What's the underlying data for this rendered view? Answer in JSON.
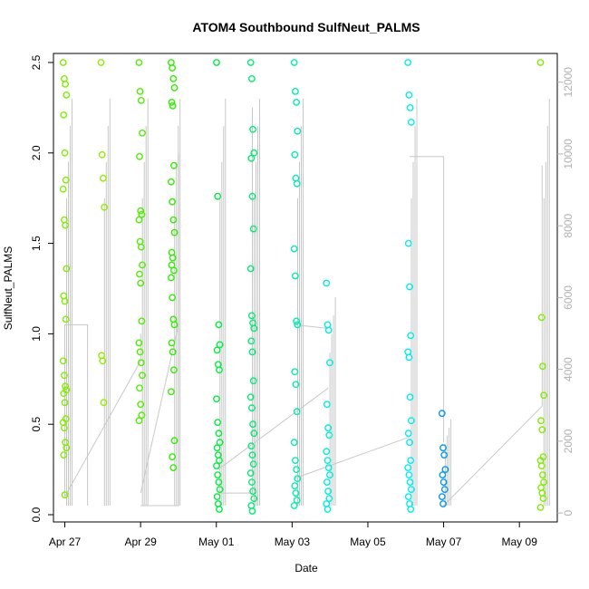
{
  "chart_data": {
    "type": "scatter",
    "title": "ATOM4 Southbound SulfNeut_PALMS",
    "xlabel": "Date",
    "ylabel": "SulfNeut_PALMS",
    "x_ticks": [
      "Apr 27",
      "Apr 29",
      "May 01",
      "May 03",
      "May 05",
      "May 07",
      "May 09"
    ],
    "x_tick_days": [
      0,
      2,
      4,
      6,
      8,
      10,
      12
    ],
    "y_ticks": [
      "0.0",
      "0.5",
      "1.0",
      "1.5",
      "2.0",
      "2.5"
    ],
    "y_tick_values": [
      0,
      0.5,
      1.0,
      1.5,
      2.0,
      2.5
    ],
    "y2_ticks": [
      "0",
      "2000",
      "4000",
      "6000",
      "8000",
      "10000",
      "12000"
    ],
    "y2_tick_values": [
      0,
      2000,
      4000,
      6000,
      8000,
      10000,
      12000
    ],
    "xlim_days": [
      -0.3,
      13.0
    ],
    "ylim": [
      -0.04,
      2.55
    ],
    "y2lim": [
      -250,
      12800
    ],
    "grid": false,
    "colors": {
      "flight_points": [
        "#80ee00",
        "#90ee00",
        "#50ee00",
        "#30ee00",
        "#00ee40",
        "#00ee70",
        "#00eeb0",
        "#00eedd",
        "#00eeee",
        "#0099ee"
      ],
      "altitude_line": "#c8c8c8",
      "axis": "#000000",
      "right_axis": "#b0b0b0"
    },
    "series": [
      {
        "flight_day": 0.0,
        "points": [
          [
            0,
            2.5
          ],
          [
            0,
            2.41
          ],
          [
            0,
            2.38
          ],
          [
            0,
            2.32
          ],
          [
            0,
            2.21
          ],
          [
            0,
            2.0
          ],
          [
            0,
            1.85
          ],
          [
            0,
            1.8
          ],
          [
            0,
            1.63
          ],
          [
            0,
            1.6
          ],
          [
            0,
            1.36
          ],
          [
            0,
            1.21
          ],
          [
            0,
            1.18
          ],
          [
            0,
            1.08
          ],
          [
            0,
            0.85
          ],
          [
            0,
            0.77
          ],
          [
            0,
            0.71
          ],
          [
            0,
            0.69
          ],
          [
            0,
            0.67
          ],
          [
            0,
            0.62
          ],
          [
            0,
            0.53
          ],
          [
            0,
            0.51
          ],
          [
            0,
            0.48
          ],
          [
            0,
            0.4
          ],
          [
            0,
            0.37
          ],
          [
            0,
            0.33
          ],
          [
            0,
            0.11
          ]
        ]
      },
      {
        "flight_day": 1.0,
        "points": [
          [
            1,
            2.5
          ],
          [
            1,
            1.99
          ],
          [
            1,
            1.86
          ],
          [
            1,
            1.7
          ],
          [
            1,
            0.88
          ],
          [
            1,
            0.85
          ],
          [
            1,
            0.62
          ]
        ]
      },
      {
        "flight_day": 2.0,
        "points": [
          [
            2,
            2.5
          ],
          [
            2,
            2.34
          ],
          [
            2,
            2.29
          ],
          [
            2,
            2.11
          ],
          [
            2,
            1.98
          ],
          [
            2,
            1.68
          ],
          [
            2,
            1.66
          ],
          [
            2,
            1.63
          ],
          [
            2,
            1.51
          ],
          [
            2,
            1.48
          ],
          [
            2,
            1.38
          ],
          [
            2,
            1.33
          ],
          [
            2,
            1.28
          ],
          [
            2,
            1.07
          ],
          [
            2,
            0.95
          ],
          [
            2,
            0.9
          ],
          [
            2,
            0.84
          ],
          [
            2,
            0.77
          ],
          [
            2,
            0.7
          ],
          [
            2,
            0.61
          ],
          [
            2,
            0.55
          ],
          [
            2,
            0.52
          ]
        ]
      },
      {
        "flight_day": 2.85,
        "points": [
          [
            2.85,
            2.5
          ],
          [
            2.85,
            2.47
          ],
          [
            2.85,
            2.41
          ],
          [
            2.85,
            2.36
          ],
          [
            2.85,
            2.28
          ],
          [
            2.85,
            2.26
          ],
          [
            2.85,
            1.93
          ],
          [
            2.85,
            1.84
          ],
          [
            2.85,
            1.73
          ],
          [
            2.85,
            1.63
          ],
          [
            2.85,
            1.56
          ],
          [
            2.85,
            1.45
          ],
          [
            2.85,
            1.42
          ],
          [
            2.85,
            1.35
          ],
          [
            2.85,
            1.31
          ],
          [
            2.85,
            1.2
          ],
          [
            2.85,
            1.08
          ],
          [
            2.85,
            1.05
          ],
          [
            2.85,
            0.95
          ],
          [
            2.85,
            0.9
          ],
          [
            2.85,
            0.8
          ],
          [
            2.85,
            0.68
          ],
          [
            2.85,
            0.32
          ],
          [
            2.85,
            0.26
          ],
          [
            2.85,
            0.41
          ],
          [
            2.85,
            1.38
          ]
        ]
      },
      {
        "flight_day": 4.05,
        "points": [
          [
            4.05,
            2.5
          ],
          [
            4.05,
            1.76
          ],
          [
            4.05,
            1.05
          ],
          [
            4.05,
            0.94
          ],
          [
            4.05,
            0.91
          ],
          [
            4.05,
            0.83
          ],
          [
            4.05,
            0.8
          ],
          [
            4.05,
            0.64
          ],
          [
            4.05,
            0.51
          ],
          [
            4.05,
            0.45
          ],
          [
            4.05,
            0.4
          ],
          [
            4.05,
            0.37
          ],
          [
            4.05,
            0.33
          ],
          [
            4.05,
            0.3
          ],
          [
            4.05,
            0.27
          ],
          [
            4.05,
            0.22
          ],
          [
            4.05,
            0.18
          ],
          [
            4.05,
            0.14
          ],
          [
            4.05,
            0.1
          ],
          [
            4.05,
            0.06
          ],
          [
            4.05,
            0.03
          ]
        ]
      },
      {
        "flight_day": 4.95,
        "points": [
          [
            4.95,
            2.5
          ],
          [
            4.95,
            2.41
          ],
          [
            4.95,
            2.13
          ],
          [
            4.95,
            2.0
          ],
          [
            4.95,
            1.97
          ],
          [
            4.95,
            1.76
          ],
          [
            4.95,
            1.58
          ],
          [
            4.95,
            1.36
          ],
          [
            4.95,
            1.1
          ],
          [
            4.95,
            1.06
          ],
          [
            4.95,
            1.03
          ],
          [
            4.95,
            0.96
          ],
          [
            4.95,
            0.9
          ],
          [
            4.95,
            0.74
          ],
          [
            4.95,
            0.65
          ],
          [
            4.95,
            0.59
          ],
          [
            4.95,
            0.5
          ],
          [
            4.95,
            0.45
          ],
          [
            4.95,
            0.38
          ],
          [
            4.95,
            0.33
          ],
          [
            4.95,
            0.28
          ],
          [
            4.95,
            0.23
          ],
          [
            4.95,
            0.18
          ],
          [
            4.95,
            0.13
          ],
          [
            4.95,
            0.09
          ],
          [
            4.95,
            0.05
          ],
          [
            4.95,
            0.02
          ]
        ]
      },
      {
        "flight_day": 6.1,
        "points": [
          [
            6.1,
            2.5
          ],
          [
            6.1,
            2.34
          ],
          [
            6.1,
            2.28
          ],
          [
            6.1,
            2.12
          ],
          [
            6.1,
            1.99
          ],
          [
            6.1,
            1.86
          ],
          [
            6.1,
            1.83
          ],
          [
            6.1,
            1.47
          ],
          [
            6.1,
            1.32
          ],
          [
            6.1,
            1.07
          ],
          [
            6.1,
            1.05
          ],
          [
            6.1,
            0.79
          ],
          [
            6.1,
            0.72
          ],
          [
            6.1,
            0.57
          ],
          [
            6.1,
            0.4
          ],
          [
            6.1,
            0.3
          ],
          [
            6.1,
            0.25
          ],
          [
            6.1,
            0.2
          ],
          [
            6.1,
            0.16
          ],
          [
            6.1,
            0.12
          ],
          [
            6.1,
            0.08
          ],
          [
            6.1,
            0.05
          ]
        ]
      },
      {
        "flight_day": 6.95,
        "points": [
          [
            6.95,
            1.28
          ],
          [
            6.95,
            1.05
          ],
          [
            6.95,
            1.02
          ],
          [
            6.95,
            0.84
          ],
          [
            6.95,
            0.61
          ],
          [
            6.95,
            0.48
          ],
          [
            6.95,
            0.44
          ],
          [
            6.95,
            0.35
          ],
          [
            6.95,
            0.3
          ],
          [
            6.95,
            0.26
          ],
          [
            6.95,
            0.22
          ],
          [
            6.95,
            0.18
          ],
          [
            6.95,
            0.13
          ],
          [
            6.95,
            0.09
          ],
          [
            6.95,
            0.06
          ],
          [
            6.95,
            0.03
          ]
        ]
      },
      {
        "flight_day": 9.1,
        "points": [
          [
            9.1,
            2.5
          ],
          [
            9.1,
            2.32
          ],
          [
            9.1,
            2.25
          ],
          [
            9.1,
            2.17
          ],
          [
            9.1,
            1.5
          ],
          [
            9.1,
            1.26
          ],
          [
            9.1,
            0.99
          ],
          [
            9.1,
            0.9
          ],
          [
            9.1,
            0.87
          ],
          [
            9.1,
            0.65
          ],
          [
            9.1,
            0.52
          ],
          [
            9.1,
            0.45
          ],
          [
            9.1,
            0.4
          ],
          [
            9.1,
            0.3
          ],
          [
            9.1,
            0.26
          ],
          [
            9.1,
            0.22
          ],
          [
            9.1,
            0.18
          ],
          [
            9.1,
            0.14
          ],
          [
            9.1,
            0.1
          ],
          [
            9.1,
            0.06
          ],
          [
            9.1,
            0.03
          ]
        ]
      },
      {
        "flight_day": 10.0,
        "points": [
          [
            10,
            0.56
          ],
          [
            10,
            0.37
          ],
          [
            10,
            0.33
          ],
          [
            10,
            0.25
          ],
          [
            10,
            0.22
          ],
          [
            10,
            0.18
          ],
          [
            10,
            0.14
          ],
          [
            10,
            0.1
          ],
          [
            10,
            0.06
          ]
        ]
      },
      {
        "flight_day": 12.6,
        "points": [
          [
            12.6,
            2.5
          ],
          [
            12.6,
            1.09
          ],
          [
            12.6,
            0.82
          ],
          [
            12.6,
            0.66
          ],
          [
            12.6,
            0.52
          ],
          [
            12.6,
            0.47
          ],
          [
            12.6,
            0.32
          ],
          [
            12.6,
            0.3
          ],
          [
            12.6,
            0.27
          ],
          [
            12.6,
            0.22
          ],
          [
            12.6,
            0.18
          ],
          [
            12.6,
            0.15
          ],
          [
            12.6,
            0.12
          ],
          [
            12.6,
            0.09
          ],
          [
            12.6,
            0.04
          ]
        ]
      }
    ],
    "altitude_segments": [
      [
        [
          0,
          0.1
        ],
        [
          0,
          1.05
        ],
        [
          0.6,
          1.05
        ],
        [
          0.6,
          0.05
        ]
      ],
      [
        [
          0,
          0.1
        ],
        [
          2,
          0.85
        ],
        [
          2,
          1.0
        ]
      ],
      [
        [
          2,
          0.12
        ],
        [
          3.0,
          1.05
        ],
        [
          3.0,
          0.05
        ]
      ],
      [
        [
          2,
          0.05
        ],
        [
          3.0,
          0.05
        ],
        [
          3.0,
          2.0
        ]
      ],
      [
        [
          4.05,
          0.12
        ],
        [
          4.95,
          0.12
        ],
        [
          4.95,
          2.25
        ]
      ],
      [
        [
          4.05,
          0.25
        ],
        [
          6.95,
          0.7
        ]
      ],
      [
        [
          6.05,
          1.05
        ],
        [
          6.95,
          1.03
        ]
      ],
      [
        [
          6.05,
          0.2
        ],
        [
          9.1,
          0.43
        ]
      ],
      [
        [
          9.1,
          1.98
        ],
        [
          10,
          1.98
        ],
        [
          10,
          0.4
        ]
      ],
      [
        [
          10,
          0.05
        ],
        [
          12.6,
          0.6
        ],
        [
          12.6,
          1.93
        ]
      ]
    ]
  }
}
